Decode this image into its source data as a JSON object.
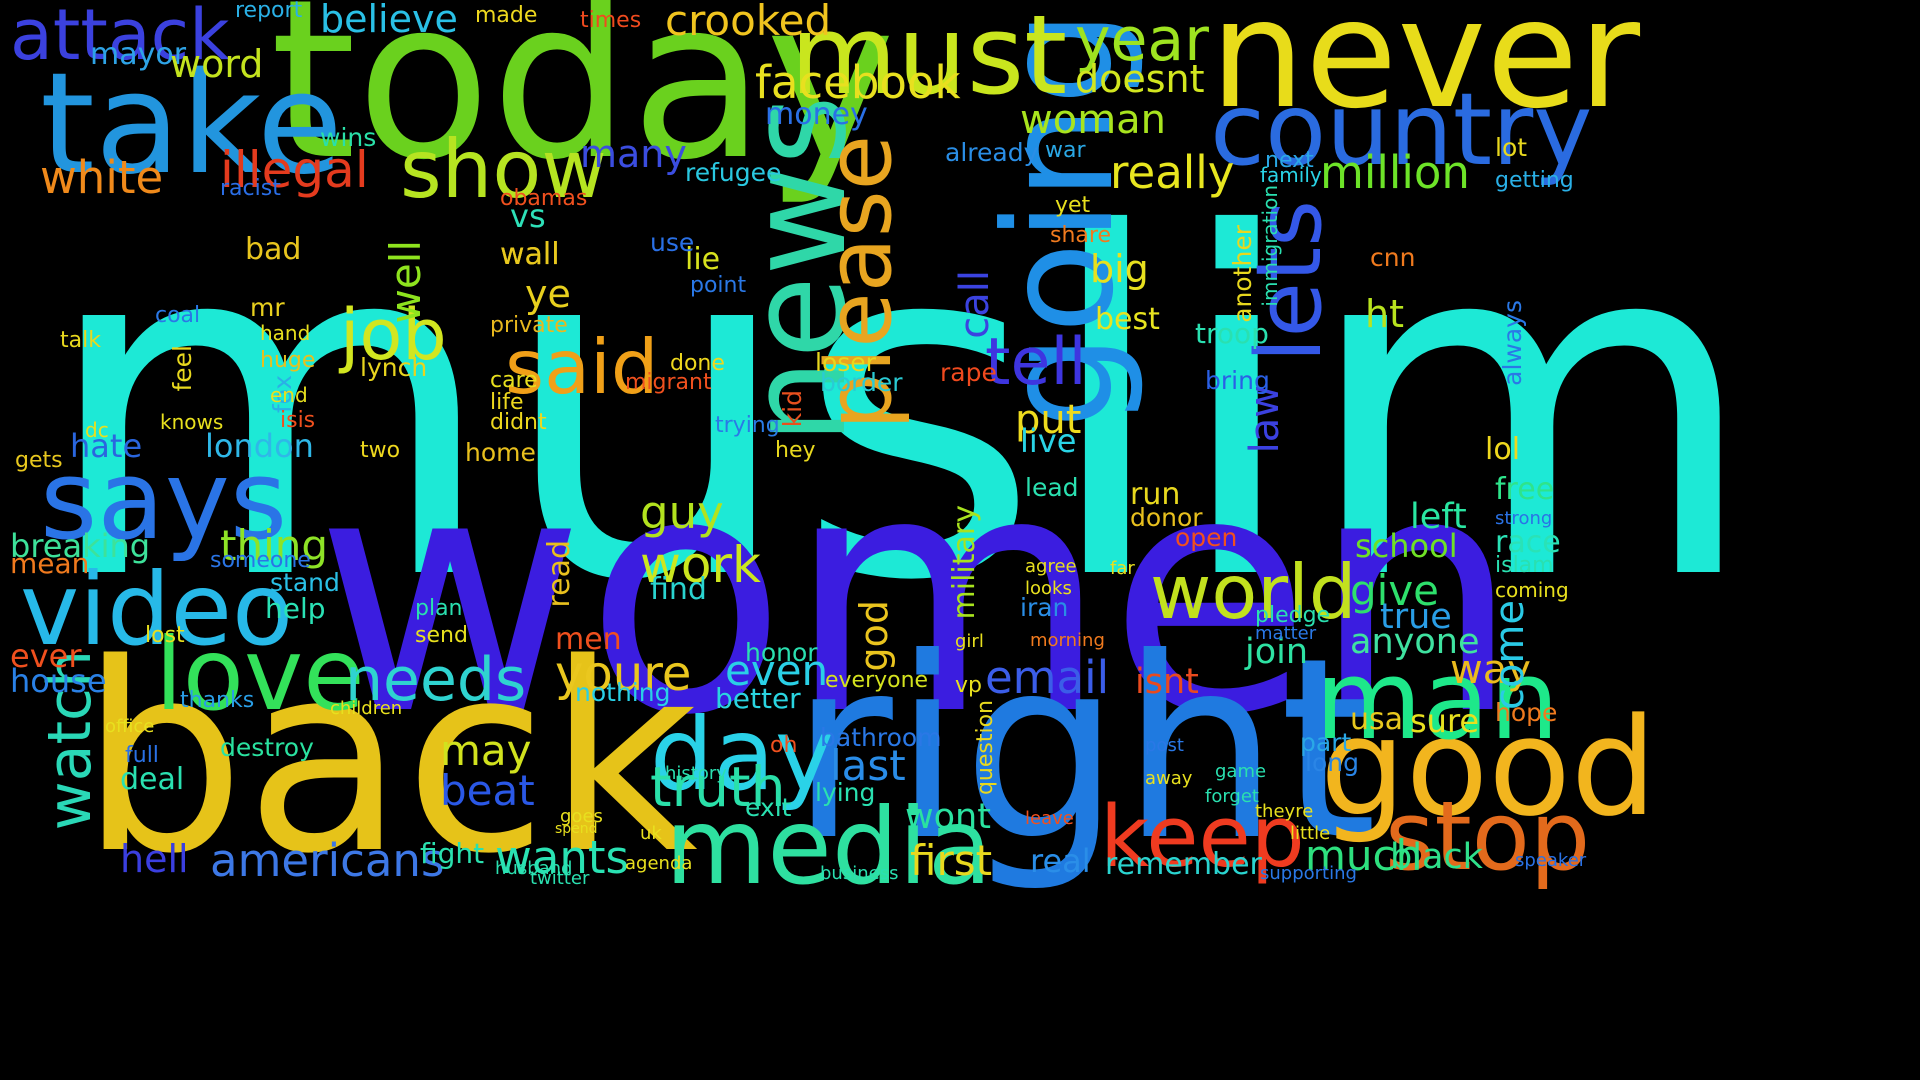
{
  "words": [
    {
      "text": "muslim",
      "color": "#1de9d6"
    },
    {
      "text": "women",
      "color": "#3b1de0"
    },
    {
      "text": "back",
      "color": "#e6c319"
    },
    {
      "text": "right",
      "color": "#1f7ae0"
    },
    {
      "text": "today",
      "color": "#6ad11e"
    },
    {
      "text": "never",
      "color": "#e8dc1a"
    },
    {
      "text": "take",
      "color": "#2295de"
    },
    {
      "text": "going",
      "color": "#1f8fe6"
    },
    {
      "text": "news",
      "color": "#2fd7a8"
    },
    {
      "text": "must",
      "color": "#c9e61e"
    },
    {
      "text": "country",
      "color": "#2a6be0"
    },
    {
      "text": "good",
      "color": "#f2b51e"
    },
    {
      "text": "stop",
      "color": "#e36a1c"
    },
    {
      "text": "man",
      "color": "#1ee88a"
    },
    {
      "text": "media",
      "color": "#2ee0a0"
    },
    {
      "text": "video",
      "color": "#27b9e8"
    },
    {
      "text": "says",
      "color": "#2a74e6"
    },
    {
      "text": "love",
      "color": "#33e15a"
    },
    {
      "text": "keep",
      "color": "#ef3b20"
    },
    {
      "text": "day",
      "color": "#2ad2e8"
    },
    {
      "text": "please",
      "color": "#e8a520"
    },
    {
      "text": "lets",
      "color": "#3458e8"
    },
    {
      "text": "show",
      "color": "#b6e421"
    },
    {
      "text": "world",
      "color": "#c2e11e"
    },
    {
      "text": "said",
      "color": "#f0a018"
    },
    {
      "text": "job",
      "color": "#d2e620"
    },
    {
      "text": "attack",
      "color": "#3b41df"
    },
    {
      "text": "watch",
      "color": "#2ad8b7"
    },
    {
      "text": "tell",
      "color": "#3e35e0"
    },
    {
      "text": "year",
      "color": "#9ee320"
    },
    {
      "text": "facebook",
      "color": "#e8e01f"
    },
    {
      "text": "illegal",
      "color": "#e43b1e"
    },
    {
      "text": "white",
      "color": "#f08a1b"
    },
    {
      "text": "woman",
      "color": "#a8e41e"
    },
    {
      "text": "needs",
      "color": "#2fd3d0"
    },
    {
      "text": "truth",
      "color": "#2ae0a9"
    },
    {
      "text": "crooked",
      "color": "#f0c41f"
    },
    {
      "text": "million",
      "color": "#6de328"
    },
    {
      "text": "really",
      "color": "#e8e61f"
    },
    {
      "text": "youre",
      "color": "#eac71e"
    },
    {
      "text": "email",
      "color": "#3b5de8"
    },
    {
      "text": "americans",
      "color": "#3d78e6"
    },
    {
      "text": "wants",
      "color": "#2ae2b3"
    },
    {
      "text": "work",
      "color": "#cce61f"
    },
    {
      "text": "guy",
      "color": "#b2e21e"
    },
    {
      "text": "first",
      "color": "#e8d81e"
    },
    {
      "text": "much",
      "color": "#2ee07e"
    },
    {
      "text": "last",
      "color": "#2a8de8"
    },
    {
      "text": "believe",
      "color": "#2ac0e6"
    },
    {
      "text": "doesnt",
      "color": "#d2e61f"
    },
    {
      "text": "many",
      "color": "#3b4de0"
    },
    {
      "text": "thing",
      "color": "#8ee326"
    },
    {
      "text": "breaking",
      "color": "#3de29a"
    },
    {
      "text": "hate",
      "color": "#2a66df"
    },
    {
      "text": "london",
      "color": "#2fb8e8"
    },
    {
      "text": "mayor",
      "color": "#2ea3e6"
    },
    {
      "text": "word",
      "color": "#c4e31e"
    },
    {
      "text": "ever",
      "color": "#f0501e"
    },
    {
      "text": "house",
      "color": "#2a81e6"
    },
    {
      "text": "hell",
      "color": "#3b3fe0"
    },
    {
      "text": "beat",
      "color": "#2a58e6"
    },
    {
      "text": "may",
      "color": "#d1e21e"
    },
    {
      "text": "even",
      "color": "#2ad0e6"
    },
    {
      "text": "black",
      "color": "#2fe08b"
    },
    {
      "text": "give",
      "color": "#2ee06c"
    },
    {
      "text": "free",
      "color": "#2ee48b"
    },
    {
      "text": "way",
      "color": "#ebbb1e"
    },
    {
      "text": "come",
      "color": "#2acae6"
    },
    {
      "text": "school",
      "color": "#6fe026"
    },
    {
      "text": "left",
      "color": "#2ae6a2"
    },
    {
      "text": "join",
      "color": "#2ee2a3"
    },
    {
      "text": "anyone",
      "color": "#3fe2a0"
    },
    {
      "text": "true",
      "color": "#2a9ee6"
    },
    {
      "text": "lol",
      "color": "#eed81e"
    },
    {
      "text": "race",
      "color": "#2ae2b6"
    },
    {
      "text": "wall",
      "color": "#e8c81e"
    },
    {
      "text": "lie",
      "color": "#d8e21e"
    },
    {
      "text": "big",
      "color": "#e8e01e"
    },
    {
      "text": "best",
      "color": "#e8e41f"
    },
    {
      "text": "call",
      "color": "#3b43e0"
    },
    {
      "text": "law",
      "color": "#3b41e0"
    },
    {
      "text": "put",
      "color": "#eedb1e"
    },
    {
      "text": "live",
      "color": "#2ad4e6"
    },
    {
      "text": "ht",
      "color": "#b8e31e"
    },
    {
      "text": "ye",
      "color": "#e8d01e"
    },
    {
      "text": "vs",
      "color": "#2ee0b8"
    },
    {
      "text": "well",
      "color": "#8ee31e"
    },
    {
      "text": "bad",
      "color": "#e8c51e"
    },
    {
      "text": "god",
      "color": "#eac41e"
    },
    {
      "text": "military",
      "color": "#a8e31e"
    },
    {
      "text": "wont",
      "color": "#2ae2a0"
    },
    {
      "text": "real",
      "color": "#2a8ee8"
    },
    {
      "text": "remember",
      "color": "#2ad4d0"
    },
    {
      "text": "isnt",
      "color": "#e94a1e"
    },
    {
      "text": "usa",
      "color": "#e8c81e"
    },
    {
      "text": "sure",
      "color": "#e8e01e"
    },
    {
      "text": "hope",
      "color": "#f07a1e"
    },
    {
      "text": "part",
      "color": "#2aa8e6"
    },
    {
      "text": "long",
      "color": "#2a85e6"
    },
    {
      "text": "troop",
      "color": "#2ae0b0"
    },
    {
      "text": "bring",
      "color": "#2a60e6"
    },
    {
      "text": "money",
      "color": "#2a70e6"
    },
    {
      "text": "refugee",
      "color": "#2ac8e0"
    },
    {
      "text": "border",
      "color": "#2acbd4"
    },
    {
      "text": "lynch",
      "color": "#e8d41e"
    },
    {
      "text": "wins",
      "color": "#2ae0a9"
    },
    {
      "text": "racist",
      "color": "#2a6ee6"
    },
    {
      "text": "help",
      "color": "#2ae2b5"
    },
    {
      "text": "stand",
      "color": "#2ac0e6"
    },
    {
      "text": "someone",
      "color": "#2a75e6"
    },
    {
      "text": "mean",
      "color": "#f07a1e"
    },
    {
      "text": "thanks",
      "color": "#2a9ee6"
    },
    {
      "text": "destroy",
      "color": "#2ae2a0"
    },
    {
      "text": "deal",
      "color": "#2ae0b0"
    },
    {
      "text": "full",
      "color": "#2a72e6"
    },
    {
      "text": "fight",
      "color": "#2ae0ae"
    },
    {
      "text": "nothing",
      "color": "#2ad0e6"
    },
    {
      "text": "better",
      "color": "#2ad4e0"
    },
    {
      "text": "bathroom",
      "color": "#2a78e6"
    },
    {
      "text": "everyone",
      "color": "#d4e21e"
    },
    {
      "text": "find",
      "color": "#2ad4d0"
    },
    {
      "text": "home",
      "color": "#e8c01e"
    },
    {
      "text": "two",
      "color": "#eed81e"
    },
    {
      "text": "report",
      "color": "#2ab0e6"
    },
    {
      "text": "made",
      "color": "#eed81e"
    },
    {
      "text": "times",
      "color": "#f04a1e"
    },
    {
      "text": "private",
      "color": "#e8b81e"
    },
    {
      "text": "care",
      "color": "#e8e01e"
    },
    {
      "text": "life",
      "color": "#eed81e"
    },
    {
      "text": "didnt",
      "color": "#eed81e"
    },
    {
      "text": "done",
      "color": "#eed81e"
    },
    {
      "text": "migrant",
      "color": "#f0501e"
    },
    {
      "text": "use",
      "color": "#2a70e6"
    },
    {
      "text": "point",
      "color": "#2a78e6"
    },
    {
      "text": "read",
      "color": "#e8c01e"
    },
    {
      "text": "men",
      "color": "#f0501e"
    },
    {
      "text": "trying",
      "color": "#2a7ae6"
    },
    {
      "text": "hey",
      "color": "#e8d81e"
    },
    {
      "text": "kid",
      "color": "#e8501e"
    },
    {
      "text": "loser",
      "color": "#e8d81e"
    },
    {
      "text": "rape",
      "color": "#f04a1e"
    },
    {
      "text": "already",
      "color": "#2a8ee6"
    },
    {
      "text": "war",
      "color": "#2aa8e6"
    },
    {
      "text": "next",
      "color": "#2aa8e6"
    },
    {
      "text": "lot",
      "color": "#e8d81e"
    },
    {
      "text": "getting",
      "color": "#2ab0e6"
    },
    {
      "text": "fox",
      "color": "#2ab0e6"
    },
    {
      "text": "isis",
      "color": "#f0501e"
    },
    {
      "text": "gets",
      "color": "#e8c81e"
    },
    {
      "text": "talk",
      "color": "#e8d81e"
    },
    {
      "text": "coal",
      "color": "#2a78e6"
    },
    {
      "text": "mr",
      "color": "#e8d01e"
    },
    {
      "text": "feel",
      "color": "#e8d81e"
    },
    {
      "text": "dc",
      "color": "#e8e01e"
    },
    {
      "text": "knows",
      "color": "#e8e01e"
    },
    {
      "text": "huge",
      "color": "#e8c01e"
    },
    {
      "text": "hand",
      "color": "#e8e01e"
    },
    {
      "text": "end",
      "color": "#e8e01e"
    },
    {
      "text": "exit",
      "color": "#2ae0b0"
    },
    {
      "text": "lying",
      "color": "#2ae0b0"
    },
    {
      "text": "honor",
      "color": "#2ae0b0"
    },
    {
      "text": "lead",
      "color": "#2ae0b0"
    },
    {
      "text": "run",
      "color": "#e8d81e"
    },
    {
      "text": "donor",
      "color": "#e8c01e"
    },
    {
      "text": "open",
      "color": "#f0501e"
    },
    {
      "text": "plan",
      "color": "#2ae0b0"
    },
    {
      "text": "send",
      "color": "#e8e01e"
    },
    {
      "text": "lost",
      "color": "#e8e01e"
    },
    {
      "text": "oh",
      "color": "#f0501e"
    },
    {
      "text": "share",
      "color": "#f07a1e"
    },
    {
      "text": "yet",
      "color": "#e8e01e"
    },
    {
      "text": "always",
      "color": "#2a78e6"
    },
    {
      "text": "another",
      "color": "#e8d81e"
    },
    {
      "text": "immigration",
      "color": "#2ae0b0"
    },
    {
      "text": "family",
      "color": "#2ad4e6"
    },
    {
      "text": "vp",
      "color": "#e8e01e"
    },
    {
      "text": "question",
      "color": "#e8d81e"
    },
    {
      "text": "cnn",
      "color": "#f07a1e"
    },
    {
      "text": "wall",
      "color": "#e8c81e"
    },
    {
      "text": "pledge",
      "color": "#2ae0b0"
    },
    {
      "text": "iran",
      "color": "#2a8ee6"
    },
    {
      "text": "matter",
      "color": "#2a78e6"
    },
    {
      "text": "islam",
      "color": "#2ae0b0"
    },
    {
      "text": "strong",
      "color": "#2a72e6"
    },
    {
      "text": "coming",
      "color": "#e8e01e"
    },
    {
      "text": "obamas",
      "color": "#f0501e"
    },
    {
      "text": "office",
      "color": "#e8e01e"
    },
    {
      "text": "children",
      "color": "#e8e01e"
    },
    {
      "text": "history",
      "color": "#2ae0b0"
    },
    {
      "text": "agenda",
      "color": "#e8e01e"
    },
    {
      "text": "husband",
      "color": "#2ae0b0"
    },
    {
      "text": "twitter",
      "color": "#2ae0b0"
    },
    {
      "text": "business",
      "color": "#2ae0b0"
    },
    {
      "text": "supporting",
      "color": "#2a78e6"
    },
    {
      "text": "speaker",
      "color": "#2a72e6"
    },
    {
      "text": "little",
      "color": "#e8e01e"
    },
    {
      "text": "theyre",
      "color": "#e8e01e"
    },
    {
      "text": "forget",
      "color": "#2ae0b0"
    },
    {
      "text": "far",
      "color": "#e8e01e"
    },
    {
      "text": "agree",
      "color": "#e8e01e"
    },
    {
      "text": "looks",
      "color": "#e8e01e"
    },
    {
      "text": "morning",
      "color": "#f07a1e"
    },
    {
      "text": "girl",
      "color": "#e8e01e"
    },
    {
      "text": "uk",
      "color": "#e8e01e"
    },
    {
      "text": "goes",
      "color": "#e8e01e"
    },
    {
      "text": "spend",
      "color": "#e8e01e"
    },
    {
      "text": "leave",
      "color": "#f0501e"
    },
    {
      "text": "post",
      "color": "#2a78e6"
    },
    {
      "text": "away",
      "color": "#e8e01e"
    },
    {
      "text": "game",
      "color": "#2ae0b0"
    }
  ]
}
